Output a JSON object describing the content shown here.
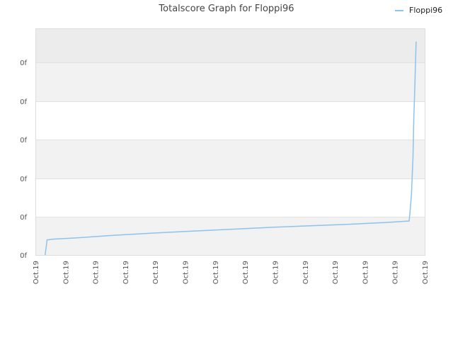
{
  "chart_data": {
    "type": "line",
    "title": "Totalscore Graph for Floppi96",
    "xlabel": "",
    "ylabel": "",
    "x_tick_labels": [
      "Oct.19",
      "Oct.19",
      "Oct.19",
      "Oct.19",
      "Oct.19",
      "Oct.19",
      "Oct.19",
      "Oct.19",
      "Oct.19",
      "Oct.19",
      "Oct.19",
      "Oct.19",
      "Oct.19",
      "Oct.19"
    ],
    "y_tick_labels": [
      "0f",
      "0f",
      "0f",
      "0f",
      "0f",
      "0f"
    ],
    "ylim": [
      0,
      6
    ],
    "grid": true,
    "legend_position": "top-right",
    "series": [
      {
        "name": "Floppi96",
        "color": "#8ec3ea",
        "x": [
          0.025,
          0.03,
          0.045,
          0.1,
          0.2,
          0.3,
          0.4,
          0.5,
          0.6,
          0.7,
          0.8,
          0.9,
          0.96,
          0.962,
          0.966,
          0.97,
          0.972,
          0.975,
          0.978
        ],
        "y": [
          0.0,
          0.4,
          0.42,
          0.45,
          0.52,
          0.58,
          0.63,
          0.68,
          0.73,
          0.77,
          0.81,
          0.86,
          0.9,
          1.1,
          1.6,
          2.6,
          3.6,
          4.6,
          5.65
        ]
      }
    ]
  }
}
